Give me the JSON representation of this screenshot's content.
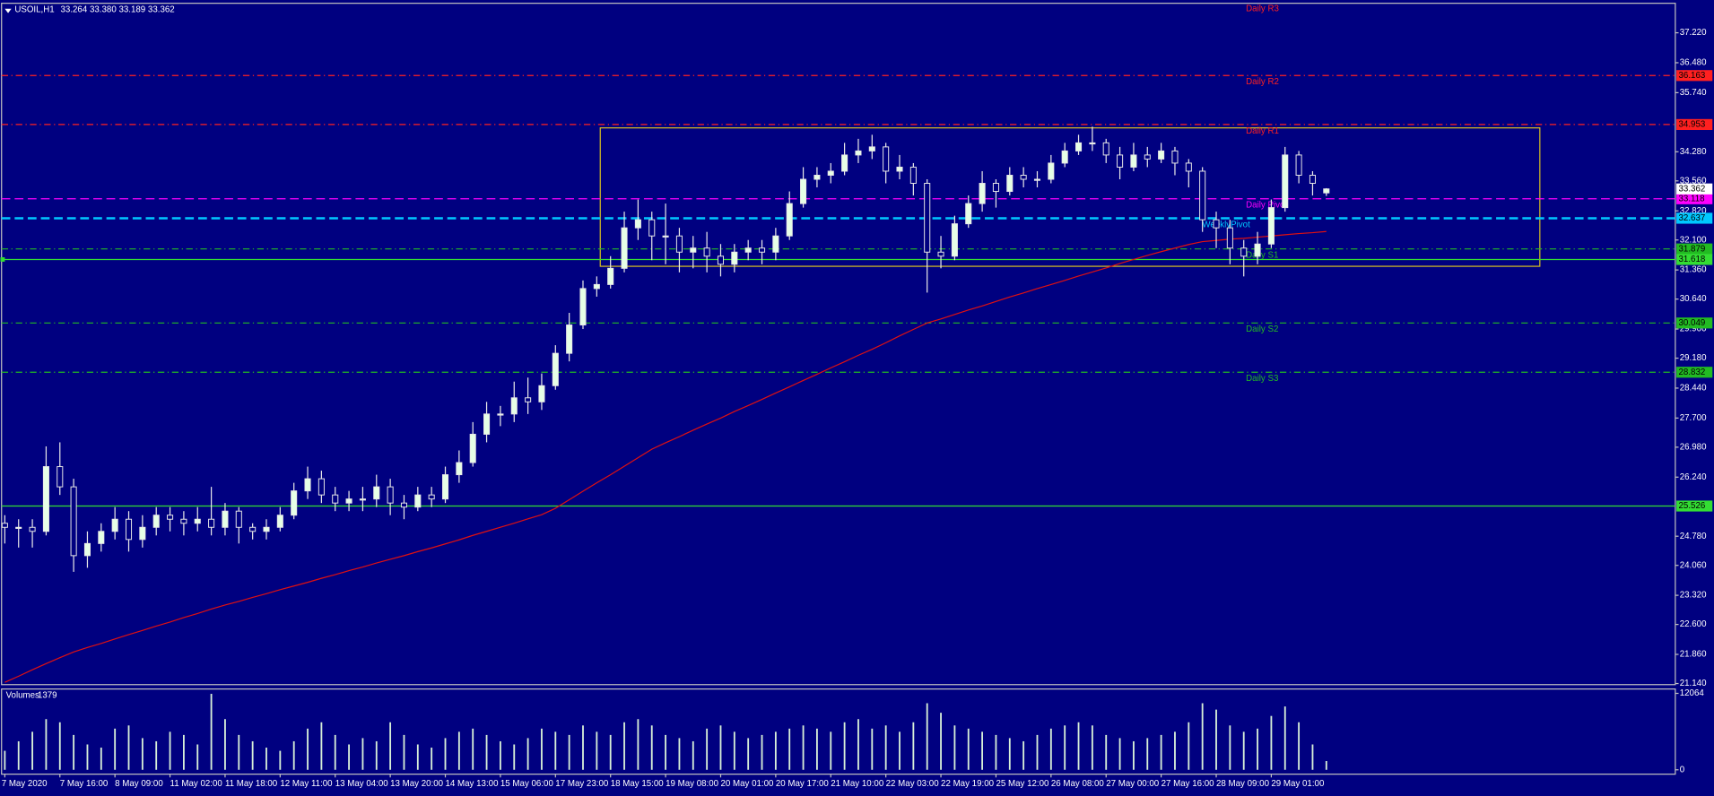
{
  "chart_data": {
    "type": "candlestick",
    "symbol": "USOIL,H1",
    "quote": "33.264 33.380 33.189 33.362",
    "categories": [
      "7 May 2020",
      null,
      null,
      null,
      "7 May 16:00",
      null,
      null,
      null,
      "8 May 09:00",
      null,
      null,
      null,
      "11 May 02:00",
      null,
      null,
      null,
      "11 May 18:00",
      null,
      null,
      null,
      "12 May 11:00",
      null,
      null,
      null,
      "13 May 04:00",
      null,
      null,
      null,
      "13 May 20:00",
      null,
      null,
      null,
      "14 May 13:00",
      null,
      null,
      null,
      "15 May 06:00",
      null,
      null,
      null,
      "17 May 23:00",
      null,
      null,
      null,
      "18 May 15:00",
      null,
      null,
      null,
      "19 May 08:00",
      null,
      null,
      null,
      "20 May 01:00",
      null,
      null,
      null,
      "20 May 17:00",
      null,
      null,
      null,
      "21 May 10:00",
      null,
      null,
      null,
      "22 May 03:00",
      null,
      null,
      null,
      "22 May 19:00",
      null,
      null,
      null,
      "25 May 12:00",
      null,
      null,
      null,
      "26 May 08:00",
      null,
      null,
      null,
      "27 May 00:00",
      null,
      null,
      null,
      "27 May 16:00",
      null,
      null,
      null,
      "28 May 09:00",
      null,
      null,
      null,
      "29 May 01:00",
      null,
      null,
      null,
      null
    ],
    "open": [
      25.1,
      25.0,
      25.0,
      24.9,
      26.5,
      26.0,
      24.3,
      24.6,
      24.9,
      25.2,
      24.7,
      25.0,
      25.3,
      25.2,
      25.1,
      25.2,
      25.0,
      25.4,
      25.0,
      24.9,
      25.0,
      25.3,
      25.9,
      26.2,
      25.8,
      25.6,
      25.7,
      25.7,
      26.0,
      25.6,
      25.5,
      25.8,
      25.7,
      26.3,
      26.6,
      27.3,
      27.8,
      27.8,
      28.2,
      28.1,
      28.5,
      29.3,
      30.0,
      30.9,
      31.0,
      31.4,
      32.4,
      32.6,
      32.2,
      32.2,
      31.8,
      31.9,
      31.7,
      31.5,
      31.8,
      31.9,
      31.8,
      32.2,
      33.0,
      33.6,
      33.7,
      33.8,
      34.2,
      34.3,
      34.4,
      33.8,
      33.9,
      33.5,
      31.8,
      31.7,
      32.5,
      33.0,
      33.5,
      33.3,
      33.7,
      33.6,
      33.6,
      34.0,
      34.3,
      34.5,
      34.5,
      34.2,
      33.9,
      34.2,
      34.1,
      34.3,
      34.0,
      33.8,
      32.6,
      32.4,
      31.9,
      31.7,
      32.0,
      32.9,
      34.2,
      33.7,
      33.264
    ],
    "high": [
      25.3,
      25.2,
      25.2,
      27.0,
      27.1,
      26.2,
      24.9,
      25.1,
      25.5,
      25.4,
      25.3,
      25.5,
      25.5,
      25.4,
      25.5,
      26.0,
      25.6,
      25.5,
      25.1,
      25.2,
      25.5,
      26.1,
      26.5,
      26.4,
      26.0,
      25.9,
      26.0,
      26.3,
      26.2,
      25.8,
      26.0,
      26.0,
      26.5,
      26.9,
      27.6,
      28.1,
      28.0,
      28.6,
      28.7,
      28.8,
      29.5,
      30.3,
      31.1,
      31.2,
      31.7,
      32.8,
      33.1,
      32.8,
      33.0,
      32.4,
      32.2,
      32.3,
      32.0,
      32.0,
      32.1,
      32.1,
      32.4,
      33.3,
      33.9,
      33.9,
      34.0,
      34.5,
      34.6,
      34.7,
      34.5,
      34.2,
      34.0,
      33.6,
      32.2,
      32.7,
      33.2,
      33.8,
      33.6,
      33.9,
      33.9,
      33.8,
      34.2,
      34.5,
      34.7,
      34.9,
      34.6,
      34.4,
      34.5,
      34.4,
      34.5,
      34.4,
      34.1,
      33.9,
      32.8,
      32.6,
      32.1,
      32.3,
      33.1,
      34.4,
      34.3,
      33.8,
      33.38
    ],
    "low": [
      24.6,
      24.5,
      24.5,
      24.8,
      25.8,
      23.9,
      24.0,
      24.4,
      24.7,
      24.4,
      24.5,
      24.8,
      24.9,
      24.8,
      24.9,
      24.8,
      24.8,
      24.6,
      24.7,
      24.7,
      24.9,
      25.2,
      25.7,
      25.6,
      25.4,
      25.4,
      25.4,
      25.5,
      25.3,
      25.2,
      25.4,
      25.5,
      25.6,
      26.1,
      26.5,
      27.1,
      27.5,
      27.6,
      27.8,
      27.9,
      28.4,
      29.1,
      29.9,
      30.7,
      30.9,
      31.3,
      32.1,
      31.6,
      31.5,
      31.3,
      31.4,
      31.3,
      31.2,
      31.3,
      31.6,
      31.5,
      31.6,
      32.1,
      32.9,
      33.4,
      33.5,
      33.7,
      34.0,
      34.1,
      33.5,
      33.6,
      33.2,
      30.8,
      31.4,
      31.6,
      32.4,
      32.8,
      32.9,
      33.2,
      33.4,
      33.4,
      33.5,
      33.9,
      34.2,
      34.3,
      34.0,
      33.6,
      33.8,
      33.9,
      34.0,
      33.7,
      33.4,
      32.3,
      31.9,
      31.5,
      31.2,
      31.5,
      31.9,
      32.8,
      33.5,
      33.2,
      33.189
    ],
    "close": [
      25.0,
      25.0,
      24.9,
      26.5,
      26.0,
      24.3,
      24.6,
      24.9,
      25.2,
      24.7,
      25.0,
      25.3,
      25.2,
      25.1,
      25.2,
      25.0,
      25.4,
      25.0,
      24.9,
      25.0,
      25.3,
      25.9,
      26.2,
      25.8,
      25.6,
      25.7,
      25.7,
      26.0,
      25.6,
      25.5,
      25.8,
      25.7,
      26.3,
      26.6,
      27.3,
      27.8,
      27.8,
      28.2,
      28.1,
      28.5,
      29.3,
      30.0,
      30.9,
      31.0,
      31.4,
      32.4,
      32.6,
      32.2,
      32.2,
      31.8,
      31.9,
      31.7,
      31.5,
      31.8,
      31.9,
      31.8,
      32.2,
      33.0,
      33.6,
      33.7,
      33.8,
      34.2,
      34.3,
      34.4,
      33.8,
      33.9,
      33.5,
      31.8,
      31.7,
      32.5,
      33.0,
      33.5,
      33.3,
      33.7,
      33.6,
      33.6,
      34.0,
      34.3,
      34.5,
      34.5,
      34.2,
      33.9,
      34.2,
      34.1,
      34.3,
      34.0,
      33.8,
      32.6,
      32.4,
      31.9,
      31.7,
      32.0,
      32.9,
      34.2,
      33.7,
      33.5,
      33.362
    ],
    "moving_average": {
      "color": "#e01010",
      "values": [
        21.17,
        21.32,
        21.48,
        21.63,
        21.78,
        21.92,
        22.03,
        22.13,
        22.24,
        22.35,
        22.45,
        22.56,
        22.66,
        22.77,
        22.87,
        22.98,
        23.08,
        23.17,
        23.27,
        23.36,
        23.46,
        23.55,
        23.64,
        23.74,
        23.83,
        23.93,
        24.02,
        24.12,
        24.21,
        24.3,
        24.4,
        24.49,
        24.59,
        24.69,
        24.8,
        24.9,
        25.0,
        25.1,
        25.21,
        25.31,
        25.47,
        25.68,
        25.89,
        26.1,
        26.3,
        26.51,
        26.72,
        26.93,
        27.09,
        27.24,
        27.4,
        27.55,
        27.7,
        27.86,
        28.01,
        28.16,
        28.32,
        28.47,
        28.63,
        28.78,
        28.94,
        29.09,
        29.25,
        29.4,
        29.56,
        29.73,
        29.89,
        30.05,
        30.15,
        30.26,
        30.37,
        30.47,
        30.58,
        30.69,
        30.79,
        30.9,
        31.0,
        31.1,
        31.21,
        31.31,
        31.41,
        31.52,
        31.62,
        31.72,
        31.81,
        31.9,
        31.99,
        32.06,
        32.09,
        32.12,
        32.14,
        32.17,
        32.2,
        32.23,
        32.26,
        32.28,
        32.31
      ]
    },
    "ylim": [
      21.113,
      37.949
    ],
    "yticks": [
      {
        "value": 37.22,
        "label": "37.220"
      },
      {
        "value": 36.48,
        "label": "36.480"
      },
      {
        "value": 35.74,
        "label": "35.740"
      },
      {
        "value": 34.28,
        "label": "34.280"
      },
      {
        "value": 33.56,
        "label": "33.560"
      },
      {
        "value": 32.82,
        "label": "32.820"
      },
      {
        "value": 32.1,
        "label": "32.100"
      },
      {
        "value": 31.36,
        "label": "31.360"
      },
      {
        "value": 30.64,
        "label": "30.640"
      },
      {
        "value": 29.9,
        "label": "29.900"
      },
      {
        "value": 29.18,
        "label": "29.180"
      },
      {
        "value": 28.44,
        "label": "28.440"
      },
      {
        "value": 27.7,
        "label": "27.700"
      },
      {
        "value": 26.98,
        "label": "26.980"
      },
      {
        "value": 26.24,
        "label": "26.240"
      },
      {
        "value": 24.78,
        "label": "24.780"
      },
      {
        "value": 24.06,
        "label": "24.060"
      },
      {
        "value": 23.32,
        "label": "23.320"
      },
      {
        "value": 22.6,
        "label": "22.600"
      },
      {
        "value": 21.86,
        "label": "21.860"
      },
      {
        "value": 21.14,
        "label": "21.140"
      }
    ],
    "rectangle": {
      "top": 34.87,
      "bottom": 31.45,
      "color": "#d8c020"
    },
    "levels": [
      {
        "name": "Daily R3",
        "color": "#ff2020",
        "style": "dashdot"
      },
      {
        "name": "Daily R2",
        "value": 36.163,
        "color": "#ff2020",
        "style": "dashdot"
      },
      {
        "name": "Daily R1",
        "value": 34.953,
        "color": "#ff2020",
        "style": "dashdot"
      },
      {
        "name": "Daily Pivot",
        "value": 33.118,
        "color": "#ff00ff",
        "style": "dash"
      },
      {
        "name": "WeeklyPivot",
        "value": 32.637,
        "color": "#00c8ff",
        "style": "dash",
        "width": 2
      },
      {
        "name": "Daily S1",
        "value": 31.879,
        "color": "#22bb22",
        "style": "dashdot"
      },
      {
        "name": "Daily S2",
        "value": 30.049,
        "color": "#22bb22",
        "style": "dashdot"
      },
      {
        "name": "Daily S3",
        "value": 28.832,
        "color": "#22bb22",
        "style": "dashdot"
      },
      {
        "value": 31.618,
        "color": "#33dd33",
        "style": "solid"
      },
      {
        "value": 25.526,
        "color": "#33dd33",
        "style": "solid"
      }
    ],
    "volume": {
      "title": "Volumes",
      "color": "#d8f0d8",
      "values": [
        3000,
        4500,
        6000,
        8000,
        7500,
        5500,
        4000,
        3500,
        6500,
        7000,
        5000,
        4500,
        6000,
        5500,
        4000,
        12000,
        8000,
        5500,
        4500,
        3500,
        3000,
        4500,
        6500,
        7500,
        5500,
        4000,
        5000,
        4500,
        7500,
        5500,
        4000,
        3500,
        5000,
        6000,
        6500,
        5500,
        4500,
        4000,
        5000,
        6500,
        6000,
        5500,
        7000,
        6000,
        5500,
        7500,
        8000,
        7000,
        5500,
        5000,
        4500,
        6500,
        7000,
        6000,
        5000,
        5500,
        6000,
        6500,
        7000,
        6500,
        6000,
        7500,
        8000,
        6500,
        7000,
        6000,
        7500,
        10500,
        9000,
        7000,
        6500,
        6000,
        5500,
        5000,
        4500,
        5500,
        6500,
        7000,
        7500,
        7000,
        5500,
        5000,
        4500,
        5000,
        5500,
        6000,
        7500,
        10500,
        9500,
        7000,
        6000,
        6500,
        8500,
        10000,
        7500,
        4000,
        1379
      ],
      "ylim": [
        0,
        12064
      ],
      "yticks": [
        12064,
        0
      ]
    }
  }
}
